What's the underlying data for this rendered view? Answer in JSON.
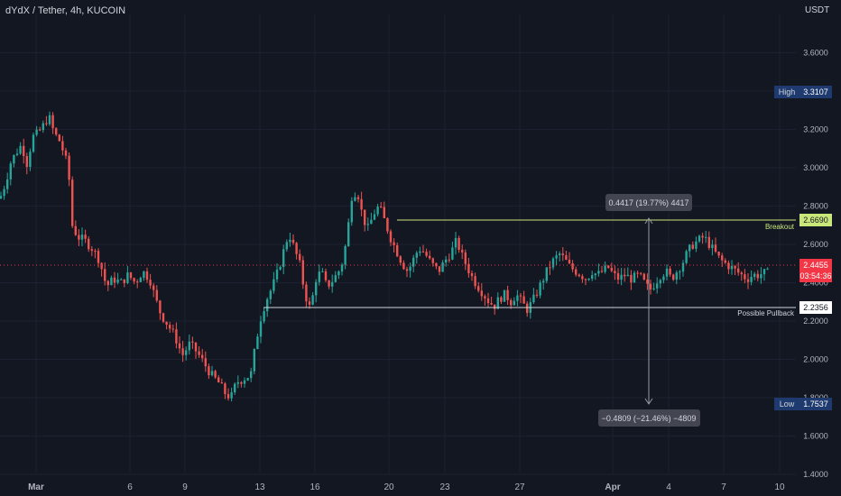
{
  "header": {
    "symbol_title": "dYdX / Tether, 4h, KUCOIN",
    "currency": "USDT"
  },
  "colors": {
    "background": "#131722",
    "up": "#26a69a",
    "down": "#ef5350",
    "grid": "#1e2230",
    "axis_text": "#b2b5be",
    "breakout_line": "#c8e67a",
    "pullback_line": "#d1d4dc",
    "high_badge": "#1e3a6e",
    "current_badge": "#f23645",
    "measure_box": "#434651"
  },
  "chart_data": {
    "type": "candlestick",
    "title": "dYdX / Tether, 4h, KUCOIN",
    "ylim": [
      1.4,
      3.8
    ],
    "y_ticks": [
      "3.6000",
      "3.4000",
      "3.2000",
      "3.0000",
      "2.8000",
      "2.6000",
      "2.4000",
      "2.2000",
      "2.0000",
      "1.8000",
      "1.6000",
      "1.4000"
    ],
    "x_ticks": [
      "Mar",
      "6",
      "9",
      "13",
      "16",
      "20",
      "23",
      "27",
      "Apr",
      "4",
      "7",
      "10"
    ],
    "price_labels": {
      "high": {
        "label": "High",
        "value": "3.3107"
      },
      "low": {
        "label": "Low",
        "value": "1.7537"
      },
      "current": {
        "value": "2.4455",
        "countdown": "03:54:36"
      },
      "breakout": {
        "value": "2.6690",
        "label": "Breakout"
      },
      "pullback": {
        "value": "2.2356",
        "label": "Possible Pullback"
      }
    },
    "measurements": {
      "up": "0.4417 (19.77%) 4417",
      "down": "−0.4809 (−21.46%) −4809"
    },
    "trend_points": [
      [
        0,
        2.84
      ],
      [
        6,
        2.92
      ],
      [
        12,
        3.03
      ],
      [
        18,
        3.08
      ],
      [
        24,
        3.12
      ],
      [
        30,
        3.02
      ],
      [
        36,
        3.16
      ],
      [
        42,
        3.18
      ],
      [
        48,
        3.22
      ],
      [
        54,
        3.27
      ],
      [
        60,
        3.18
      ],
      [
        66,
        3.14
      ],
      [
        72,
        3.06
      ],
      [
        76,
        2.98
      ],
      [
        80,
        2.7
      ],
      [
        86,
        2.64
      ],
      [
        94,
        2.62
      ],
      [
        102,
        2.58
      ],
      [
        110,
        2.52
      ],
      [
        118,
        2.38
      ],
      [
        126,
        2.42
      ],
      [
        134,
        2.4
      ],
      [
        142,
        2.44
      ],
      [
        150,
        2.4
      ],
      [
        158,
        2.46
      ],
      [
        166,
        2.42
      ],
      [
        172,
        2.32
      ],
      [
        178,
        2.24
      ],
      [
        186,
        2.18
      ],
      [
        194,
        2.12
      ],
      [
        202,
        2.02
      ],
      [
        210,
        2.08
      ],
      [
        218,
        2.04
      ],
      [
        226,
        1.98
      ],
      [
        234,
        1.92
      ],
      [
        242,
        1.88
      ],
      [
        250,
        1.82
      ],
      [
        256,
        1.8
      ],
      [
        262,
        1.88
      ],
      [
        270,
        1.9
      ],
      [
        278,
        1.92
      ],
      [
        284,
        2.1
      ],
      [
        290,
        2.24
      ],
      [
        296,
        2.32
      ],
      [
        302,
        2.38
      ],
      [
        308,
        2.46
      ],
      [
        314,
        2.56
      ],
      [
        320,
        2.66
      ],
      [
        326,
        2.58
      ],
      [
        332,
        2.5
      ],
      [
        338,
        2.34
      ],
      [
        344,
        2.26
      ],
      [
        350,
        2.42
      ],
      [
        356,
        2.46
      ],
      [
        362,
        2.38
      ],
      [
        370,
        2.42
      ],
      [
        378,
        2.48
      ],
      [
        384,
        2.62
      ],
      [
        390,
        2.86
      ],
      [
        396,
        2.88
      ],
      [
        402,
        2.74
      ],
      [
        408,
        2.68
      ],
      [
        414,
        2.76
      ],
      [
        420,
        2.8
      ],
      [
        428,
        2.7
      ],
      [
        434,
        2.62
      ],
      [
        440,
        2.56
      ],
      [
        446,
        2.5
      ],
      [
        452,
        2.46
      ],
      [
        458,
        2.52
      ],
      [
        464,
        2.58
      ],
      [
        470,
        2.56
      ],
      [
        478,
        2.5
      ],
      [
        486,
        2.46
      ],
      [
        494,
        2.52
      ],
      [
        500,
        2.56
      ],
      [
        506,
        2.62
      ],
      [
        512,
        2.54
      ],
      [
        518,
        2.48
      ],
      [
        524,
        2.42
      ],
      [
        530,
        2.38
      ],
      [
        536,
        2.34
      ],
      [
        542,
        2.3
      ],
      [
        548,
        2.28
      ],
      [
        554,
        2.32
      ],
      [
        560,
        2.34
      ],
      [
        566,
        2.3
      ],
      [
        572,
        2.34
      ],
      [
        578,
        2.3
      ],
      [
        584,
        2.26
      ],
      [
        590,
        2.3
      ],
      [
        596,
        2.36
      ],
      [
        602,
        2.42
      ],
      [
        608,
        2.48
      ],
      [
        614,
        2.52
      ],
      [
        620,
        2.55
      ],
      [
        626,
        2.52
      ],
      [
        632,
        2.48
      ],
      [
        638,
        2.46
      ],
      [
        644,
        2.44
      ],
      [
        650,
        2.42
      ],
      [
        656,
        2.46
      ],
      [
        662,
        2.44
      ],
      [
        668,
        2.46
      ],
      [
        674,
        2.48
      ],
      [
        680,
        2.44
      ],
      [
        686,
        2.42
      ],
      [
        692,
        2.44
      ],
      [
        700,
        2.42
      ],
      [
        708,
        2.44
      ],
      [
        714,
        2.4
      ],
      [
        720,
        2.36
      ],
      [
        726,
        2.4
      ],
      [
        732,
        2.44
      ],
      [
        738,
        2.46
      ],
      [
        744,
        2.42
      ],
      [
        750,
        2.46
      ],
      [
        756,
        2.5
      ],
      [
        762,
        2.56
      ],
      [
        768,
        2.6
      ],
      [
        774,
        2.62
      ],
      [
        780,
        2.64
      ],
      [
        786,
        2.6
      ],
      [
        792,
        2.56
      ],
      [
        798,
        2.52
      ],
      [
        804,
        2.5
      ],
      [
        810,
        2.48
      ],
      [
        816,
        2.46
      ],
      [
        822,
        2.44
      ],
      [
        828,
        2.42
      ],
      [
        834,
        2.44
      ],
      [
        840,
        2.44
      ],
      [
        846,
        2.45
      ],
      [
        852,
        2.45
      ]
    ]
  }
}
